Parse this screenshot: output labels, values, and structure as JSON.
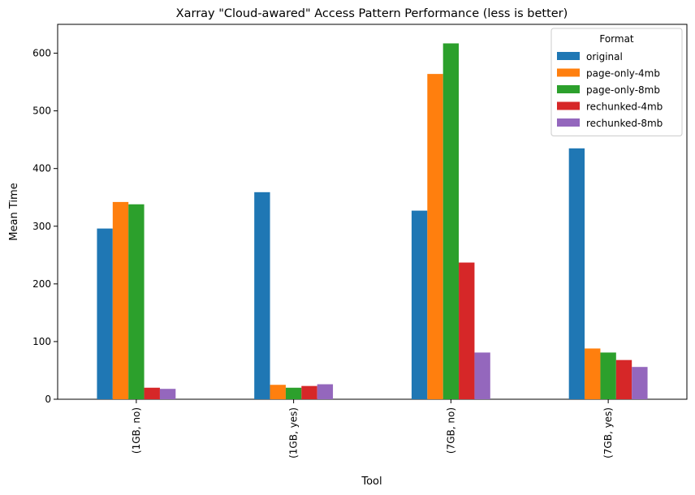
{
  "chart_data": {
    "type": "bar",
    "title": "Xarray \"Cloud-awared\" Access Pattern Performance (less is better)",
    "xlabel": "Tool",
    "ylabel": "Mean Time",
    "categories": [
      "(1GB, no)",
      "(1GB, yes)",
      "(7GB, no)",
      "(7GB, yes)"
    ],
    "ylim": [
      0,
      650
    ],
    "yticks": [
      0,
      100,
      200,
      300,
      400,
      500,
      600
    ],
    "grid": false,
    "legend": {
      "title": "Format",
      "placement": "top-right"
    },
    "series": [
      {
        "name": "original",
        "color": "#1f77b4",
        "values": [
          296,
          359,
          327,
          435
        ]
      },
      {
        "name": "page-only-4mb",
        "color": "#ff7f0e",
        "values": [
          342,
          25,
          564,
          88
        ]
      },
      {
        "name": "page-only-8mb",
        "color": "#2ca02c",
        "values": [
          338,
          20,
          617,
          81
        ]
      },
      {
        "name": "rechunked-4mb",
        "color": "#d62728",
        "values": [
          20,
          23,
          237,
          68
        ]
      },
      {
        "name": "rechunked-8mb",
        "color": "#9467bd",
        "values": [
          18,
          26,
          81,
          56
        ]
      }
    ]
  }
}
